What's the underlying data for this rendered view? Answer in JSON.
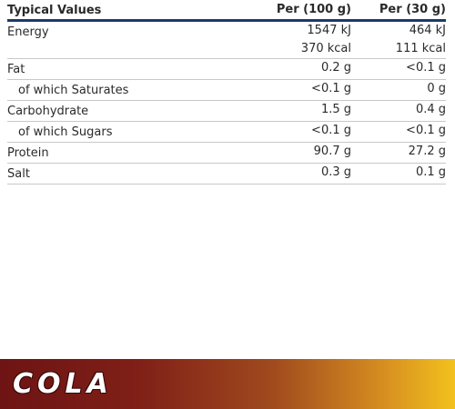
{
  "table": {
    "header": [
      "Typical Values",
      "Per (100 g)",
      "Per (30 g)"
    ],
    "rows": [
      {
        "label": "Energy",
        "cells": [
          [
            "1547 kJ",
            "370 kcal"
          ],
          [
            "464 kJ",
            "111 kcal"
          ]
        ]
      },
      {
        "label": "Fat",
        "cells": [
          [
            "0.2 g"
          ],
          [
            "<0.1 g"
          ]
        ]
      },
      {
        "label": "of which Saturates",
        "cells": [
          [
            "<0.1 g"
          ],
          [
            "0 g"
          ]
        ],
        "indent": true
      },
      {
        "label": "Carbohydrate",
        "cells": [
          [
            "1.5 g"
          ],
          [
            "0.4 g"
          ]
        ]
      },
      {
        "label": "of which Sugars",
        "cells": [
          [
            "<0.1 g"
          ],
          [
            "<0.1 g"
          ]
        ],
        "indent": true
      },
      {
        "label": "Protein",
        "cells": [
          [
            "90.7 g"
          ],
          [
            "27.2 g"
          ]
        ]
      },
      {
        "label": "Salt",
        "cells": [
          [
            "0.3 g"
          ],
          [
            "0.1 g"
          ]
        ]
      }
    ]
  },
  "banner": {
    "title": "COLA"
  }
}
